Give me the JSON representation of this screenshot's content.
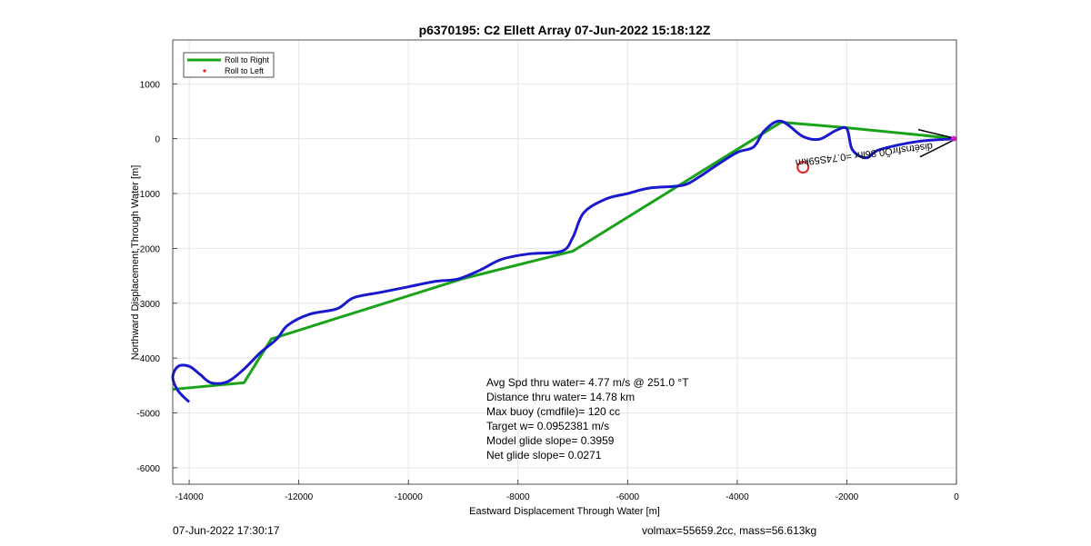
{
  "chart_data": {
    "type": "line",
    "title": "p6370195: C2 Ellett Array 07-Jun-2022 15:18:12Z",
    "xlabel": "Eastward Displacement Through Water [m]",
    "ylabel": "Northward Displacement Through Water [m]",
    "xlim": [
      -14300,
      0
    ],
    "ylim": [
      -6300,
      1800
    ],
    "xticks": [
      -14000,
      -12000,
      -10000,
      -8000,
      -6000,
      -4000,
      -2000,
      0
    ],
    "yticks": [
      1000,
      0,
      -1000,
      -2000,
      -3000,
      -4000,
      -5000,
      -6000
    ],
    "grid": true,
    "legend_position": "top-left",
    "legend": [
      {
        "label": "Roll to Right",
        "color": "#1aa31a",
        "marker": "line"
      },
      {
        "label": "Roll to Left",
        "color": "#e02020",
        "marker": "dot"
      }
    ],
    "series": [
      {
        "name": "Roll to Right",
        "color": "#1aa31a",
        "points": [
          [
            0,
            0
          ],
          [
            -2000,
            200
          ],
          [
            -3200,
            300
          ],
          [
            -7000,
            -2050
          ],
          [
            -9000,
            -2550
          ],
          [
            -12500,
            -3650
          ],
          [
            -13000,
            -4450
          ],
          [
            -14300,
            -4570
          ]
        ]
      },
      {
        "color": "#1a1acc",
        "points": [
          [
            0,
            0
          ],
          [
            -700,
            -50
          ],
          [
            -1400,
            -200
          ],
          [
            -1650,
            -350
          ],
          [
            -1900,
            -200
          ],
          [
            -2000,
            180
          ],
          [
            -2200,
            150
          ],
          [
            -2500,
            -10
          ],
          [
            -2800,
            40
          ],
          [
            -3200,
            320
          ],
          [
            -3500,
            150
          ],
          [
            -3700,
            -150
          ],
          [
            -4000,
            -250
          ],
          [
            -4400,
            -500
          ],
          [
            -4700,
            -700
          ],
          [
            -5000,
            -850
          ],
          [
            -5600,
            -900
          ],
          [
            -6000,
            -1000
          ],
          [
            -6400,
            -1100
          ],
          [
            -6800,
            -1350
          ],
          [
            -7000,
            -1800
          ],
          [
            -7200,
            -2050
          ],
          [
            -7800,
            -2100
          ],
          [
            -8300,
            -2200
          ],
          [
            -8700,
            -2400
          ],
          [
            -9100,
            -2560
          ],
          [
            -9500,
            -2600
          ],
          [
            -10000,
            -2700
          ],
          [
            -10500,
            -2800
          ],
          [
            -11000,
            -2900
          ],
          [
            -11300,
            -3100
          ],
          [
            -11800,
            -3200
          ],
          [
            -12200,
            -3400
          ],
          [
            -12400,
            -3650
          ],
          [
            -12700,
            -3900
          ],
          [
            -13000,
            -4200
          ],
          [
            -13300,
            -4430
          ],
          [
            -13600,
            -4450
          ],
          [
            -13800,
            -4300
          ],
          [
            -14000,
            -4150
          ],
          [
            -14200,
            -4150
          ],
          [
            -14300,
            -4350
          ],
          [
            -14200,
            -4600
          ],
          [
            -14000,
            -4800
          ]
        ]
      }
    ],
    "annotations": {
      "waypoint_label": "disétnsfırŐ0.86lhr =0.74S59km",
      "waypoint_circle": [
        -2800,
        -520
      ],
      "heading_arrow_to": [
        0,
        0
      ],
      "text_lines": [
        "Avg Spd thru water=  4.77 m/s @ 251.0 °T",
        "Distance thru water= 14.78 km",
        "Max buoy (cmdfile)= 120 cc",
        "Target w= 0.0952381 m/s",
        "Model glide slope= 0.3959",
        "Net glide slope= 0.0271"
      ]
    }
  },
  "footer": {
    "left": "07-Jun-2022 17:30:17",
    "right": "volmax=55659.2cc, mass=56.613kg"
  }
}
